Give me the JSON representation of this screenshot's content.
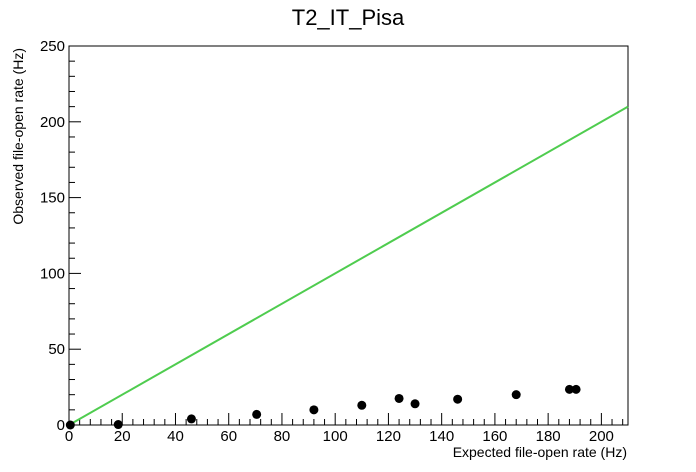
{
  "chart_data": {
    "type": "scatter",
    "title": "T2_IT_Pisa",
    "xlabel": "Expected file-open rate (Hz)",
    "ylabel": "Observed file-open rate (Hz)",
    "xlim": [
      0,
      210
    ],
    "ylim": [
      0,
      250
    ],
    "x_ticks": [
      0,
      20,
      40,
      60,
      80,
      100,
      120,
      140,
      160,
      180,
      200
    ],
    "y_ticks": [
      0,
      50,
      100,
      150,
      200,
      250
    ],
    "grid": false,
    "points": [
      {
        "x": 0.5,
        "y": 0
      },
      {
        "x": 18.5,
        "y": 0.3
      },
      {
        "x": 46,
        "y": 4
      },
      {
        "x": 70.5,
        "y": 7
      },
      {
        "x": 92,
        "y": 10
      },
      {
        "x": 110,
        "y": 13
      },
      {
        "x": 124,
        "y": 17.5
      },
      {
        "x": 130,
        "y": 14
      },
      {
        "x": 146,
        "y": 17
      },
      {
        "x": 168,
        "y": 20
      },
      {
        "x": 188,
        "y": 23.5
      },
      {
        "x": 190.5,
        "y": 23.5
      }
    ],
    "reference_line": {
      "x": [
        0,
        210
      ],
      "y": [
        0,
        210
      ],
      "color": "#4fcc4f"
    },
    "marker_color": "#000000"
  }
}
